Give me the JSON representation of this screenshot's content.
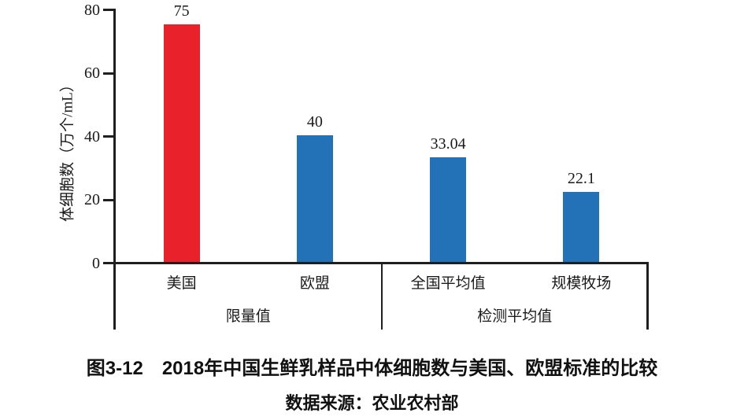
{
  "figure": {
    "caption": "图3-12　2018年中国生鲜乳样品中体细胞数与美国、欧盟标准的比较",
    "source": "数据来源：农业农村部"
  },
  "chart_data": {
    "type": "bar",
    "title": "图3-12　2018年中国生鲜乳样品中体细胞数与美国、欧盟标准的比较",
    "xlabel": "",
    "ylabel": "体细胞数（万个/mL）",
    "ylim": [
      0,
      80
    ],
    "yticks": [
      0,
      20,
      40,
      60,
      80
    ],
    "grid": false,
    "legend": "none",
    "categories": [
      "美国",
      "欧盟",
      "全国平均值",
      "规模牧场"
    ],
    "values": [
      75,
      40,
      33.04,
      22.1
    ],
    "value_labels": [
      "75",
      "40",
      "33.04",
      "22.1"
    ],
    "bar_colors": [
      "#e8212a",
      "#2372b7",
      "#2372b7",
      "#2372b7"
    ],
    "groups": [
      {
        "label": "限量值",
        "categories": [
          "美国",
          "欧盟"
        ]
      },
      {
        "label": "检测平均值",
        "categories": [
          "全国平均值",
          "规模牧场"
        ]
      }
    ],
    "colors": {
      "limit_us_bar": "#e8212a",
      "other_bars": "#2372b7",
      "axis": "#1f1f1f",
      "text": "#1a1a1a"
    }
  }
}
